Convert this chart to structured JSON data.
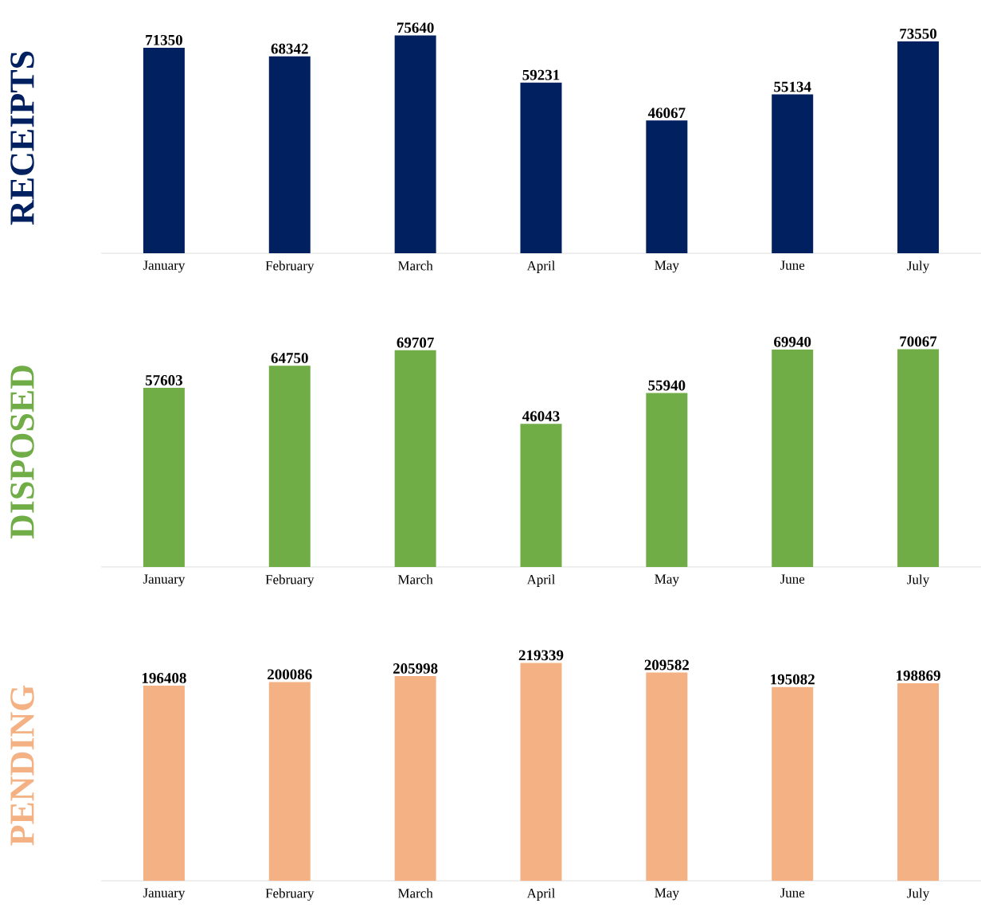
{
  "chart_data": [
    {
      "type": "bar",
      "ylabel": "RECEIPTS",
      "categories": [
        "January",
        "February",
        "March",
        "April",
        "May",
        "June",
        "July"
      ],
      "values": [
        71350,
        68342,
        75640,
        59231,
        46067,
        55134,
        73550
      ],
      "color": "#002060",
      "data_labels": true
    },
    {
      "type": "bar",
      "ylabel": "DISPOSED",
      "categories": [
        "January",
        "February",
        "March",
        "April",
        "May",
        "June",
        "July"
      ],
      "values": [
        57603,
        64750,
        69707,
        46043,
        55940,
        69940,
        70067
      ],
      "color": "#70ad47",
      "data_labels": true
    },
    {
      "type": "bar",
      "ylabel": "PENDING",
      "categories": [
        "January",
        "February",
        "March",
        "April",
        "May",
        "June",
        "July"
      ],
      "values": [
        196408,
        200086,
        205998,
        219339,
        209582,
        195082,
        198869
      ],
      "color": "#f4b183",
      "data_labels": true
    }
  ]
}
